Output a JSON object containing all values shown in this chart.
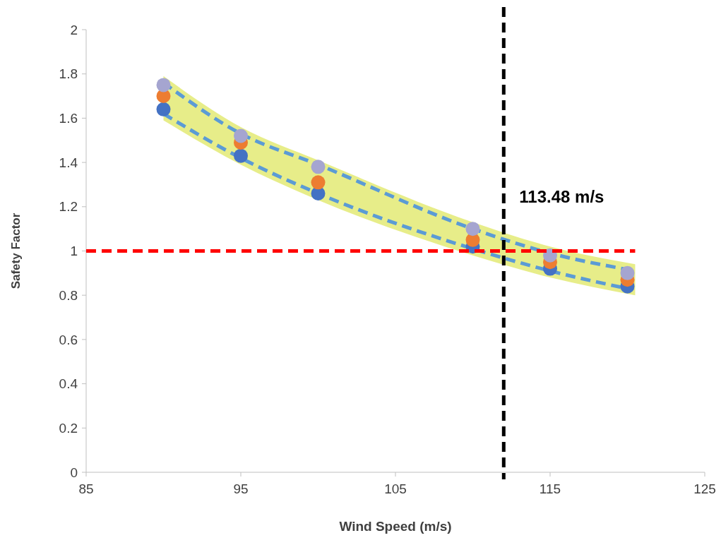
{
  "chart_data": {
    "type": "scatter",
    "xlabel": "Wind Speed (m/s)",
    "ylabel": "Safety Factor",
    "xlim": [
      85,
      125
    ],
    "xticks": [
      85,
      95,
      105,
      115,
      125
    ],
    "ylim": [
      0,
      2
    ],
    "yticks": [
      0,
      {
        "value": 0.2,
        "label": "0.2"
      },
      {
        "value": 0.4,
        "label": "0.4"
      },
      {
        "value": 0.6,
        "label": "0.6"
      },
      {
        "value": 0.8,
        "label": "0.8"
      },
      1,
      {
        "value": 1.2,
        "label": "1.2"
      },
      {
        "value": 1.4,
        "label": "1.4"
      },
      {
        "value": 1.6,
        "label": "1.6"
      },
      {
        "value": 1.8,
        "label": "1.8"
      },
      2
    ],
    "grid": false,
    "marker": "circle",
    "x": [
      90,
      95,
      100,
      110,
      115,
      120
    ],
    "series": [
      {
        "type": "line",
        "color": "#5b9bd5",
        "line_style": "dashed",
        "marker": "none",
        "x": [
          90,
          95,
          100,
          110,
          115,
          120.5
        ],
        "values": [
          1.76,
          1.53,
          1.39,
          1.1,
          0.99,
          0.91
        ],
        "lower": [
          1.59,
          1.39,
          1.23,
          0.98,
          0.88,
          0.8
        ],
        "upper": [
          1.79,
          1.56,
          1.41,
          1.13,
          1.02,
          0.94
        ]
      },
      {
        "type": "line",
        "color": "#5b9bd5",
        "line_style": "dashed",
        "marker": "none",
        "x": [
          90,
          95,
          100,
          110,
          115,
          120
        ],
        "values": [
          1.62,
          1.42,
          1.26,
          1.01,
          0.91,
          0.83
        ]
      },
      {
        "color": "#4472c4",
        "values": [
          1.64,
          1.43,
          1.26,
          1.02,
          0.92,
          0.84
        ]
      },
      {
        "color": "#ed7d31",
        "values": [
          1.7,
          1.49,
          1.31,
          1.05,
          0.95,
          0.87
        ]
      },
      {
        "color": "#a5a5d0",
        "values": [
          1.75,
          1.52,
          1.38,
          1.1,
          0.98,
          0.9
        ]
      }
    ],
    "ref_lines": [
      {
        "axis": "y",
        "value": 1,
        "color": "#ff0000",
        "line_style": "dashed"
      },
      {
        "axis": "x",
        "value": 112,
        "label": "113.48 m/s",
        "color": "#000000",
        "line_style": "dashed"
      }
    ]
  }
}
